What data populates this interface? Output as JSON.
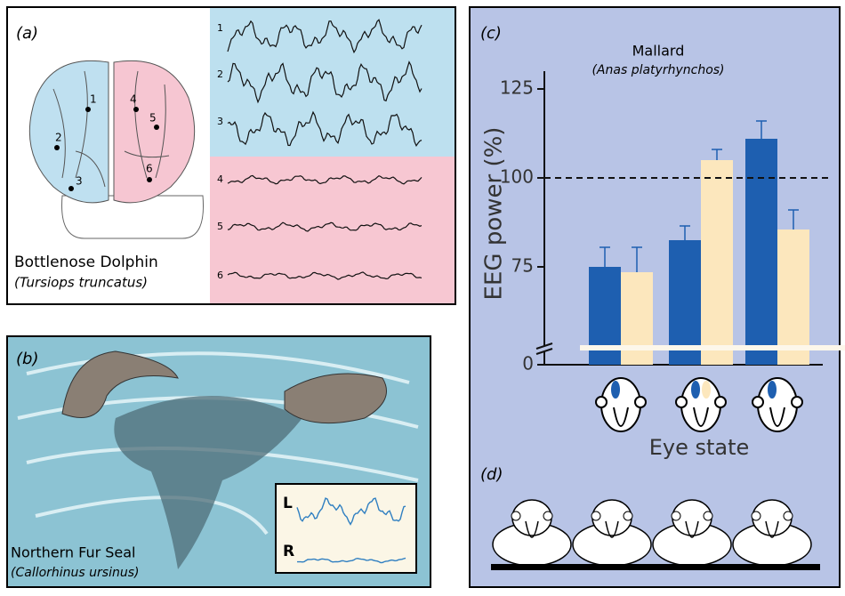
{
  "panel_a": {
    "label": "(a)",
    "species": "Bottlenose Dolphin",
    "latin": "(Tursiops truncatus)",
    "electrodes": [
      "1",
      "2",
      "3",
      "4",
      "5",
      "6"
    ],
    "traces": [
      "1",
      "2",
      "3",
      "4",
      "5",
      "6"
    ]
  },
  "panel_b": {
    "label": "(b)",
    "species": "Northern Fur Seal",
    "latin": "(Callorhinus ursinus)",
    "traces": [
      "L",
      "R"
    ]
  },
  "panel_d": {
    "label": "(d)"
  },
  "chart_data": {
    "type": "bar",
    "panel_label": "(c)",
    "title": "Mallard",
    "subtitle": "(Anas platyrhynchos)",
    "y_label": "EEG power (%)",
    "x_label": "Eye state",
    "categories": [
      null,
      null,
      null
    ],
    "series": [
      {
        "color": "#1e5fb0",
        "values": [
          75,
          82.5,
          111
        ],
        "errors": [
          5.5,
          4,
          5
        ]
      },
      {
        "color": "#fce7bd",
        "values": [
          73.5,
          105,
          85.5
        ],
        "errors": [
          7,
          3,
          5.5
        ]
      }
    ],
    "ylim": [
      0,
      130
    ],
    "yticks": [
      0,
      75,
      100,
      125
    ],
    "axis_break": true,
    "reference_line": 100,
    "grid": false
  }
}
